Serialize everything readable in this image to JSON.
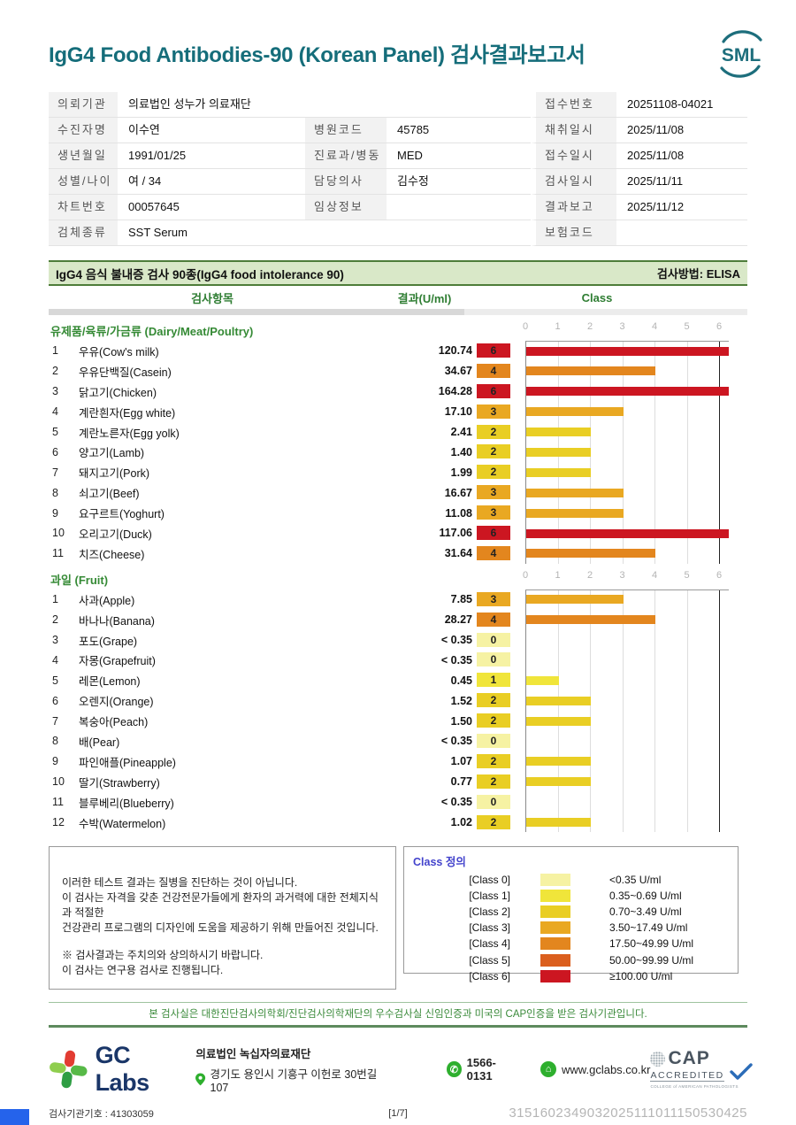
{
  "page": {
    "title": "IgG4 Food Antibodies-90 (Korean Panel) 검사결과보고서",
    "logo": "SML",
    "accent_teal": "#156d7a",
    "accent_green": "#358a35"
  },
  "patient_info": {
    "rows": [
      {
        "l1": "의뢰기관",
        "v1": "의료법인 성누가 의료재단",
        "wide": true,
        "l3": "접수번호",
        "v3": "20251108-04021"
      },
      {
        "l1": "수진자명",
        "v1": "이수연",
        "l2": "병원코드",
        "v2": "45785",
        "l3": "채취일시",
        "v3": "2025/11/08"
      },
      {
        "l1": "생년월일",
        "v1": "1991/01/25",
        "l2": "진료과/병동",
        "v2": "MED",
        "l3": "접수일시",
        "v3": "2025/11/08"
      },
      {
        "l1": "성별/나이",
        "v1": "여 / 34",
        "l2": "담당의사",
        "v2": "김수정",
        "l3": "검사일시",
        "v3": "2025/11/11"
      },
      {
        "l1": "차트번호",
        "v1": "00057645",
        "l2": "임상정보",
        "v2": "",
        "l3": "결과보고",
        "v3": "2025/11/12"
      },
      {
        "l1": "검체종류",
        "v1": "SST Serum",
        "wide": true,
        "l3": "보험코드",
        "v3": ""
      }
    ]
  },
  "report": {
    "section_title": "IgG4 음식 불내증 검사 90종(IgG4 food intolerance 90)",
    "method": "검사방법: ELISA",
    "col_item": "검사항목",
    "col_result": "결과(U/ml)",
    "col_class": "Class",
    "axis_ticks": [
      "0",
      "1",
      "2",
      "3",
      "4",
      "5",
      "6"
    ],
    "groups": [
      {
        "name": "유제품/육류/가금류 (Dairy/Meat/Poultry)",
        "items": [
          {
            "no": "1",
            "name": "우유(Cow's milk)",
            "result": "120.74",
            "class": 6
          },
          {
            "no": "2",
            "name": "우유단백질(Casein)",
            "result": "34.67",
            "class": 4
          },
          {
            "no": "3",
            "name": "닭고기(Chicken)",
            "result": "164.28",
            "class": 6
          },
          {
            "no": "4",
            "name": "계란흰자(Egg white)",
            "result": "17.10",
            "class": 3
          },
          {
            "no": "5",
            "name": "계란노른자(Egg yolk)",
            "result": "2.41",
            "class": 2
          },
          {
            "no": "6",
            "name": "양고기(Lamb)",
            "result": "1.40",
            "class": 2
          },
          {
            "no": "7",
            "name": "돼지고기(Pork)",
            "result": "1.99",
            "class": 2
          },
          {
            "no": "8",
            "name": "쇠고기(Beef)",
            "result": "16.67",
            "class": 3
          },
          {
            "no": "9",
            "name": "요구르트(Yoghurt)",
            "result": "11.08",
            "class": 3
          },
          {
            "no": "10",
            "name": "오리고기(Duck)",
            "result": "117.06",
            "class": 6
          },
          {
            "no": "11",
            "name": "치즈(Cheese)",
            "result": "31.64",
            "class": 4
          }
        ]
      },
      {
        "name": "과일 (Fruit)",
        "items": [
          {
            "no": "1",
            "name": "사과(Apple)",
            "result": "7.85",
            "class": 3
          },
          {
            "no": "2",
            "name": "바나나(Banana)",
            "result": "28.27",
            "class": 4
          },
          {
            "no": "3",
            "name": "포도(Grape)",
            "result": "< 0.35",
            "class": 0
          },
          {
            "no": "4",
            "name": "자몽(Grapefruit)",
            "result": "< 0.35",
            "class": 0
          },
          {
            "no": "5",
            "name": "레몬(Lemon)",
            "result": "0.45",
            "class": 1
          },
          {
            "no": "6",
            "name": "오렌지(Orange)",
            "result": "1.52",
            "class": 2
          },
          {
            "no": "7",
            "name": "복숭아(Peach)",
            "result": "1.50",
            "class": 2
          },
          {
            "no": "8",
            "name": "배(Pear)",
            "result": "< 0.35",
            "class": 0
          },
          {
            "no": "9",
            "name": "파인애플(Pineapple)",
            "result": "1.07",
            "class": 2
          },
          {
            "no": "10",
            "name": "딸기(Strawberry)",
            "result": "0.77",
            "class": 2
          },
          {
            "no": "11",
            "name": "블루베리(Blueberry)",
            "result": "< 0.35",
            "class": 0
          },
          {
            "no": "12",
            "name": "수박(Watermelon)",
            "result": "1.02",
            "class": 2
          }
        ]
      }
    ]
  },
  "class_colors": {
    "0": "#F6F2A3",
    "1": "#F0E53A",
    "2": "#E9CE24",
    "3": "#E9A822",
    "4": "#E3861E",
    "5": "#DB5F1E",
    "6": "#CC1621"
  },
  "disclaimer": {
    "lines": [
      "이러한 테스트 결과는 질병을 진단하는 것이 아닙니다.",
      "이 검사는 자격을 갖춘 건강전문가들에게 환자의 과거력에 대한 전체지식과 적절한",
      "건강관리 프로그램의 디자인에 도움을 제공하기 위해 만들어진 것입니다.",
      "",
      "※ 검사결과는 주치의와 상의하시기 바랍니다.",
      "이 검사는 연구용 검사로 진행됩니다."
    ]
  },
  "class_legend": {
    "title": "Class 정의",
    "rows": [
      {
        "label": "[Class 0]",
        "cls": 0,
        "range": "<0.35 U/ml"
      },
      {
        "label": "[Class 1]",
        "cls": 1,
        "range": "0.35~0.69 U/ml"
      },
      {
        "label": "[Class 2]",
        "cls": 2,
        "range": "0.70~3.49 U/ml"
      },
      {
        "label": "[Class 3]",
        "cls": 3,
        "range": "3.50~17.49 U/ml"
      },
      {
        "label": "[Class 4]",
        "cls": 4,
        "range": "17.50~49.99 U/ml"
      },
      {
        "label": "[Class 5]",
        "cls": 5,
        "range": "50.00~99.99 U/ml"
      },
      {
        "label": "[Class 6]",
        "cls": 6,
        "range": "≥100.00 U/ml"
      }
    ]
  },
  "footer": {
    "banner": "본 검사실은 대한진단검사의학회/진단검사의학재단의 우수검사실 신임인증과 미국의 CAP인증을 받은 검사기관입니다.",
    "brand": "GC Labs",
    "org": "의료법인 녹십자의료재단",
    "address": "경기도 용인시 기흥구 이헌로 30번길 107",
    "phone": "1566-0131",
    "website": "www.gclabs.co.kr",
    "cap_line1": "CAP",
    "cap_line2": "ACCREDITED",
    "cap_line3": "COLLEGE of AMERICAN PATHOLOGISTS",
    "agency": "검사기관기호 : 41303059",
    "page_no": "[1/7]",
    "serial": "3151602349032025111011150530425"
  }
}
